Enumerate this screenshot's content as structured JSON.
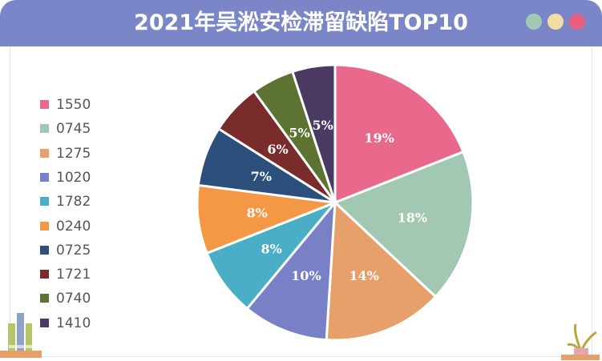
{
  "header": {
    "title": "2021年吴淞安检滞留缺陷TOP10",
    "dots": [
      "#a3c9b4",
      "#f5dca3",
      "#e8607e"
    ]
  },
  "chart_data": {
    "type": "pie",
    "title": "2021年吴淞安检滞留缺陷TOP10",
    "legend_position": "left",
    "slices": [
      {
        "label": "1550",
        "percent": 19,
        "percent_text": "19%",
        "color": "#e8698c"
      },
      {
        "label": "0745",
        "percent": 18,
        "percent_text": "18%",
        "color": "#a2c8b3"
      },
      {
        "label": "1275",
        "percent": 14,
        "percent_text": "14%",
        "color": "#e8a06b"
      },
      {
        "label": "1020",
        "percent": 10,
        "percent_text": "10%",
        "color": "#7880c6"
      },
      {
        "label": "1782",
        "percent": 8,
        "percent_text": "8%",
        "color": "#4aaec6"
      },
      {
        "label": "0240",
        "percent": 8,
        "percent_text": "8%",
        "color": "#f49845"
      },
      {
        "label": "0725",
        "percent": 7,
        "percent_text": "7%",
        "color": "#2d4f7c"
      },
      {
        "label": "1721",
        "percent": 6,
        "percent_text": "6%",
        "color": "#7a2c2b"
      },
      {
        "label": "0740",
        "percent": 5,
        "percent_text": "5%",
        "color": "#5c7331"
      },
      {
        "label": "1410",
        "percent": 5,
        "percent_text": "5%",
        "color": "#4a3a62"
      }
    ]
  }
}
